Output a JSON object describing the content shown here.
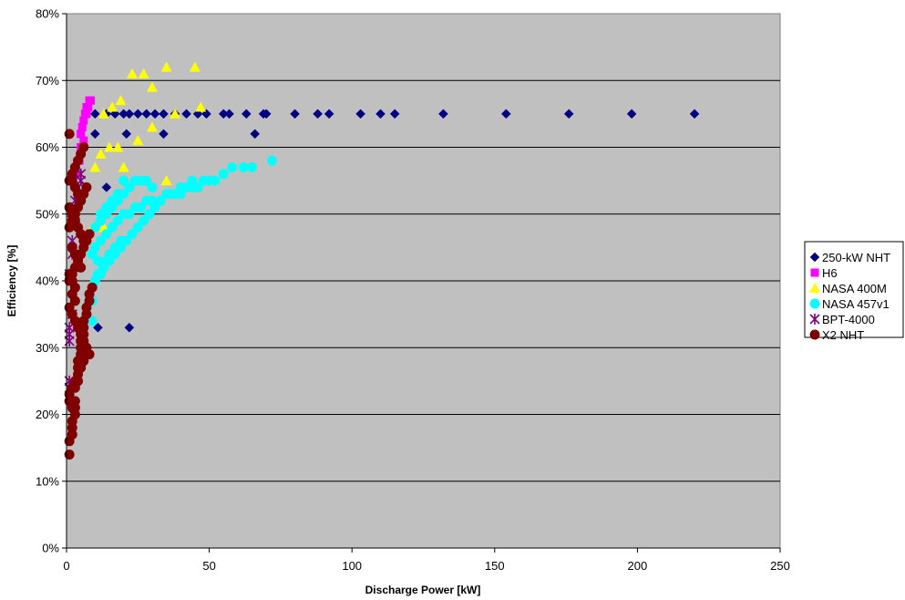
{
  "chart_data": {
    "type": "scatter",
    "title": "",
    "xlabel": "Discharge Power [kW]",
    "ylabel": "Efficiency [%]",
    "xlim": [
      0,
      250
    ],
    "ylim": [
      0,
      80
    ],
    "x_ticks": [
      0,
      50,
      100,
      150,
      200,
      250
    ],
    "y_ticks": [
      "0%",
      "10%",
      "20%",
      "30%",
      "40%",
      "50%",
      "60%",
      "70%",
      "80%"
    ],
    "plot_background": "#c0c0c0",
    "grid": "horizontal",
    "legend_position": "right",
    "series": [
      {
        "name": "250-kW NHT",
        "marker": "diamond",
        "color": "#000080",
        "x": [
          10,
          14,
          17,
          20,
          22,
          25,
          28,
          31,
          34,
          38,
          42,
          46,
          49,
          55,
          57,
          63,
          69,
          70,
          80,
          88,
          92,
          103,
          110,
          115,
          132,
          154,
          176,
          198,
          220,
          10,
          21,
          34,
          66,
          14,
          22,
          6,
          11,
          22
        ],
        "y": [
          65,
          65,
          65,
          65,
          65,
          65,
          65,
          65,
          65,
          65,
          65,
          65,
          65,
          65,
          65,
          65,
          65,
          65,
          65,
          65,
          65,
          65,
          65,
          65,
          65,
          65,
          65,
          65,
          65,
          62,
          62,
          62,
          62,
          54,
          54,
          33,
          33,
          33
        ]
      },
      {
        "name": "H6",
        "marker": "square",
        "color": "#ff00ff",
        "x": [
          5,
          5.5,
          6,
          6.5,
          7,
          7.5,
          8,
          8.5,
          5,
          6,
          7,
          4,
          4.5
        ],
        "y": [
          62,
          63,
          64,
          65,
          66,
          66,
          67,
          67,
          60,
          61,
          65,
          56,
          58
        ]
      },
      {
        "name": "NASA 400M",
        "marker": "triangle",
        "color": "#ffff00",
        "x": [
          23,
          27,
          35,
          45,
          30,
          19,
          16,
          13,
          38,
          47,
          18,
          20,
          25,
          30,
          35,
          10,
          12,
          15,
          9,
          13
        ],
        "y": [
          71,
          71,
          72,
          72,
          69,
          67,
          66,
          65,
          65,
          66,
          60,
          57,
          61,
          63,
          55,
          57,
          59,
          60,
          48,
          48
        ]
      },
      {
        "name": "NASA 457v1",
        "marker": "circle",
        "color": "#00ffff",
        "x": [
          72,
          65,
          62,
          58,
          55,
          52,
          50,
          48,
          46,
          44,
          42,
          40,
          38,
          35,
          33,
          30,
          28,
          26,
          24,
          22,
          20,
          18,
          16,
          14,
          12,
          10,
          9,
          11,
          13,
          15,
          17,
          19,
          21,
          23,
          25,
          27,
          29,
          31,
          33,
          36,
          40,
          44,
          12,
          14,
          16,
          18,
          20,
          11,
          13,
          15,
          17,
          19,
          10,
          12,
          14,
          16,
          18,
          20,
          22,
          24,
          26,
          28,
          30,
          10,
          12,
          14,
          9,
          9
        ],
        "y": [
          58,
          57,
          57,
          57,
          56,
          55,
          55,
          55,
          54,
          54,
          54,
          53,
          53,
          53,
          52,
          52,
          52,
          51,
          51,
          50,
          50,
          49,
          48,
          47,
          46,
          45,
          44,
          43,
          42,
          43,
          44,
          45,
          46,
          47,
          48,
          49,
          50,
          51,
          52,
          53,
          54,
          55,
          50,
          51,
          52,
          53,
          55,
          41,
          42,
          44,
          45,
          46,
          48,
          49,
          50,
          51,
          52,
          53,
          54,
          55,
          55,
          55,
          54,
          40,
          41,
          43,
          37,
          34
        ]
      },
      {
        "name": "BPT-4000",
        "marker": "asterisk",
        "color": "#800080",
        "x": [
          1,
          1,
          1,
          1,
          1,
          2,
          2,
          2,
          3,
          3,
          3,
          4,
          4,
          5,
          5,
          1,
          2
        ],
        "y": [
          24,
          25,
          31,
          32,
          41,
          44,
          46,
          49,
          50,
          51,
          52,
          53,
          54,
          55,
          56,
          33,
          35
        ]
      },
      {
        "name": "X2 NHT",
        "marker": "circle",
        "color": "#800000",
        "x": [
          1,
          1,
          2,
          2,
          2,
          3,
          3,
          3,
          4,
          4,
          4,
          5,
          5,
          5,
          6,
          6,
          6,
          7,
          7,
          8,
          8,
          9,
          1,
          2,
          3,
          4,
          5,
          6,
          7,
          8,
          1,
          2,
          3,
          4,
          5,
          6,
          7,
          1,
          2,
          3,
          4,
          5,
          6,
          1,
          2,
          3,
          4,
          5,
          1,
          2,
          3,
          4,
          5,
          6,
          2,
          3,
          4,
          5,
          1,
          2,
          3,
          2,
          3,
          1,
          2,
          3,
          4,
          5,
          6,
          7,
          8,
          6,
          5,
          4,
          3,
          2,
          1,
          1,
          2,
          3
        ],
        "y": [
          14,
          16,
          17,
          18,
          19,
          21,
          22,
          24,
          25,
          27,
          28,
          29,
          30,
          31,
          32,
          33,
          34,
          35,
          36,
          37,
          38,
          39,
          40,
          41,
          42,
          43,
          44,
          45,
          46,
          47,
          48,
          49,
          50,
          51,
          52,
          53,
          54,
          55,
          56,
          57,
          58,
          59,
          60,
          62,
          55,
          54,
          53,
          52,
          51,
          50,
          49,
          48,
          47,
          46,
          45,
          44,
          43,
          42,
          41,
          40,
          39,
          38,
          37,
          36,
          35,
          34,
          33,
          32,
          31,
          30,
          29,
          28,
          27,
          26,
          25,
          24,
          23,
          22,
          21,
          20
        ]
      }
    ]
  }
}
